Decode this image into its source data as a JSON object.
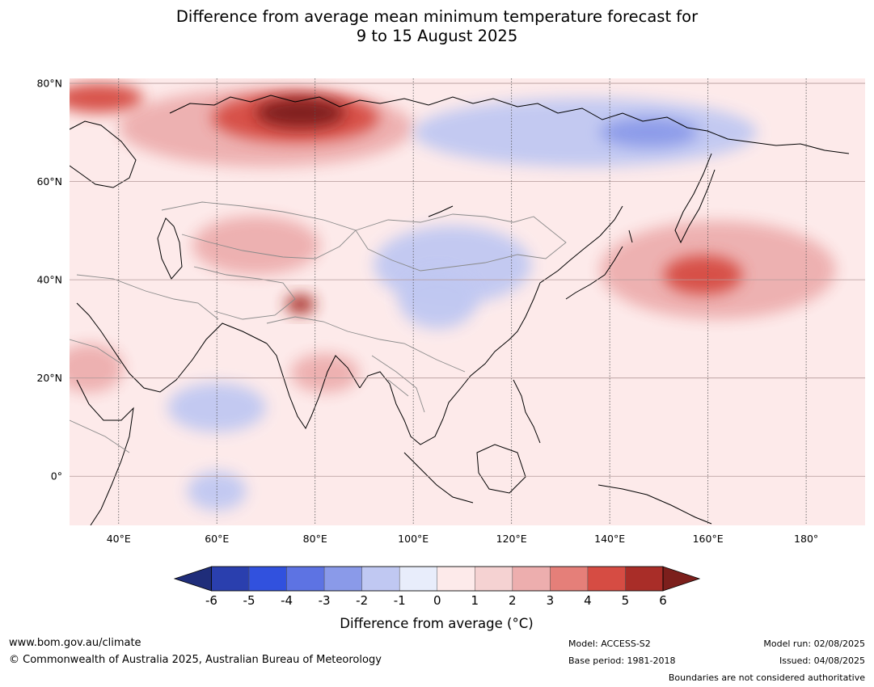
{
  "title_line1": "Difference from average mean minimum temperature forecast for",
  "title_line2": "9 to 15 August 2025",
  "map": {
    "projection": "equirectangular",
    "lon_range": [
      30,
      192
    ],
    "lat_range": [
      -10,
      81
    ],
    "lon_ticks": [
      {
        "value": 40,
        "label": "40°E"
      },
      {
        "value": 60,
        "label": "60°E"
      },
      {
        "value": 80,
        "label": "80°E"
      },
      {
        "value": 100,
        "label": "100°E"
      },
      {
        "value": 120,
        "label": "120°E"
      },
      {
        "value": 140,
        "label": "140°E"
      },
      {
        "value": 160,
        "label": "160°E"
      },
      {
        "value": 180,
        "label": "180°"
      }
    ],
    "lat_ticks": [
      {
        "value": 80,
        "label": "80°N"
      },
      {
        "value": 60,
        "label": "60°N"
      },
      {
        "value": 40,
        "label": "40°N"
      },
      {
        "value": 20,
        "label": "20°N"
      },
      {
        "value": 0,
        "label": "0°"
      }
    ],
    "anomaly_regions": [
      {
        "name": "northern-russia-warm",
        "level": 2,
        "lon": 70,
        "lat": 71,
        "rx": 30,
        "ry": 8
      },
      {
        "name": "northern-russia-warm-core",
        "level": 4,
        "lon": 76,
        "lat": 73,
        "rx": 17,
        "ry": 5
      },
      {
        "name": "northern-russia-warm-peak",
        "level": 6,
        "lon": 77,
        "lat": 74,
        "rx": 9,
        "ry": 3
      },
      {
        "name": "barents-warm",
        "level": 4,
        "lon": 36,
        "lat": 77,
        "rx": 9,
        "ry": 3
      },
      {
        "name": "siberia-cool",
        "level": -1,
        "lon": 135,
        "lat": 70,
        "rx": 35,
        "ry": 7
      },
      {
        "name": "east-siberia-cool-core",
        "level": -2,
        "lon": 148,
        "lat": 70,
        "rx": 10,
        "ry": 3
      },
      {
        "name": "mongolia-cool",
        "level": -1,
        "lon": 108,
        "lat": 43,
        "rx": 16,
        "ry": 8
      },
      {
        "name": "china-cool",
        "level": -1,
        "lon": 105,
        "lat": 36,
        "rx": 8,
        "ry": 6
      },
      {
        "name": "pacific-warm",
        "level": 2,
        "lon": 162,
        "lat": 42,
        "rx": 24,
        "ry": 10
      },
      {
        "name": "pacific-warm-core",
        "level": 4,
        "lon": 159,
        "lat": 41,
        "rx": 8,
        "ry": 4
      },
      {
        "name": "kazakhstan-warm",
        "level": 2,
        "lon": 68,
        "lat": 47,
        "rx": 13,
        "ry": 6
      },
      {
        "name": "karakoram-warm",
        "level": 5,
        "lon": 77,
        "lat": 35,
        "rx": 3,
        "ry": 2
      },
      {
        "name": "arabia-warm",
        "level": 2,
        "lon": 34,
        "lat": 22,
        "rx": 7,
        "ry": 5
      },
      {
        "name": "india-warm",
        "level": 2,
        "lon": 82,
        "lat": 21,
        "rx": 7,
        "ry": 4
      },
      {
        "name": "arabian-sea-cool",
        "level": -1,
        "lon": 60,
        "lat": 14,
        "rx": 10,
        "ry": 5
      },
      {
        "name": "indian-ocean-cool",
        "level": -1,
        "lon": 60,
        "lat": -3,
        "rx": 6,
        "ry": 4
      }
    ]
  },
  "colorbar": {
    "label": "Difference from average (°C)",
    "tick_labels": [
      "-6",
      "-5",
      "-4",
      "-3",
      "-2",
      "-1",
      "0",
      "1",
      "2",
      "3",
      "4",
      "5",
      "6"
    ],
    "colors": [
      "#1f2d7a",
      "#2a3fae",
      "#3151de",
      "#5d73e3",
      "#8a9ae9",
      "#c0c8f2",
      "#e8edfb",
      "#fdeaea",
      "#f5d2d2",
      "#edaeae",
      "#e57f79",
      "#d64c43",
      "#a92d28",
      "#7c1f1c"
    ]
  },
  "footer": {
    "website": "www.bom.gov.au/climate",
    "copyright": "© Commonwealth of Australia 2025, Australian Bureau of Meteorology",
    "model": "Model: ACCESS-S2",
    "base_period": "Base period: 1981-2018",
    "model_run": "Model run: 02/08/2025",
    "issued": "Issued: 04/08/2025",
    "disclaimer": "Boundaries are not considered authoritative"
  }
}
